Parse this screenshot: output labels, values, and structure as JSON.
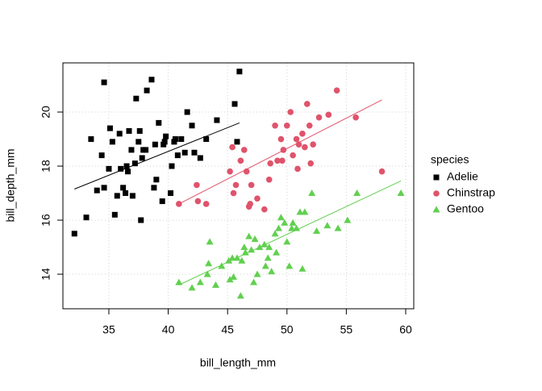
{
  "chart_data": {
    "type": "scatter",
    "xlabel": "bill_length_mm",
    "ylabel": "bill_depth_mm",
    "xlim": [
      31.13,
      60.68
    ],
    "ylim": [
      12.72,
      21.82
    ],
    "xticks": [
      35,
      40,
      45,
      50,
      55,
      60
    ],
    "yticks": [
      14,
      16,
      18,
      20
    ],
    "grid": true,
    "legend_title": "species",
    "legend": "right",
    "series": [
      {
        "name": "Adelie",
        "color": "#000000",
        "marker": "square",
        "x": [
          32.1,
          33.1,
          33.5,
          34.0,
          34.4,
          34.6,
          34.6,
          35.0,
          35.1,
          35.3,
          35.5,
          35.7,
          35.9,
          36.0,
          36.2,
          36.4,
          36.6,
          36.7,
          36.9,
          37.0,
          37.2,
          37.3,
          37.5,
          37.6,
          37.7,
          37.8,
          38.1,
          38.2,
          38.6,
          38.8,
          39.0,
          39.2,
          39.5,
          39.6,
          39.7,
          40.2,
          40.3,
          40.6,
          40.8,
          41.1,
          41.4,
          41.6,
          42.0,
          42.2,
          42.7,
          43.2,
          44.1,
          45.6,
          45.8,
          46.0,
          36.5,
          38.9,
          40.5,
          39.8,
          37.9
        ],
        "values": [
          15.5,
          16.1,
          19.0,
          17.1,
          18.4,
          21.1,
          17.2,
          17.9,
          19.4,
          18.9,
          16.2,
          16.9,
          19.2,
          17.9,
          17.2,
          17.0,
          17.8,
          19.3,
          18.6,
          16.9,
          18.1,
          20.5,
          18.9,
          19.3,
          16.0,
          18.3,
          18.6,
          20.8,
          21.2,
          17.2,
          17.5,
          19.6,
          16.7,
          18.8,
          18.9,
          17.0,
          18.0,
          19.0,
          18.4,
          19.0,
          18.5,
          20.0,
          19.5,
          18.5,
          18.3,
          19.0,
          19.7,
          20.3,
          18.9,
          21.5,
          18.0,
          18.8,
          18.9,
          19.1,
          18.6
        ],
        "fit": {
          "x": [
            32.1,
            46.0
          ],
          "y": [
            17.15,
            19.6
          ]
        }
      },
      {
        "name": "Chinstrap",
        "color": "#DF536B",
        "marker": "circle",
        "x": [
          40.9,
          42.4,
          42.5,
          43.2,
          45.2,
          45.4,
          45.5,
          45.7,
          46.1,
          46.4,
          46.6,
          46.9,
          47.0,
          47.5,
          48.1,
          48.5,
          49.0,
          49.2,
          49.5,
          49.7,
          50.0,
          50.3,
          50.5,
          50.8,
          51.0,
          51.3,
          51.5,
          51.7,
          51.9,
          52.0,
          52.2,
          52.7,
          53.5,
          54.2,
          55.8,
          58.0,
          49.6,
          50.9,
          46.8,
          48.6
        ],
        "values": [
          16.6,
          17.3,
          16.7,
          16.6,
          17.8,
          18.7,
          17.0,
          17.3,
          18.2,
          18.6,
          17.8,
          16.6,
          17.3,
          16.8,
          16.4,
          17.5,
          19.5,
          18.2,
          19.0,
          18.6,
          19.5,
          20.0,
          18.4,
          19.0,
          18.8,
          19.2,
          18.7,
          20.3,
          19.5,
          18.1,
          18.8,
          19.8,
          19.9,
          20.8,
          19.8,
          17.8,
          18.2,
          17.9,
          16.5,
          18.1
        ],
        "fit": {
          "x": [
            40.9,
            58.0
          ],
          "y": [
            16.6,
            20.45
          ]
        }
      },
      {
        "name": "Gentoo",
        "color": "#61D04F",
        "marker": "triangle",
        "x": [
          40.9,
          42.0,
          42.7,
          43.3,
          43.5,
          44.0,
          44.5,
          45.1,
          45.2,
          45.5,
          45.8,
          46.1,
          46.2,
          46.5,
          46.8,
          47.0,
          47.3,
          47.5,
          47.7,
          48.1,
          48.4,
          48.5,
          48.7,
          49.0,
          49.1,
          49.5,
          49.8,
          50.0,
          50.4,
          50.5,
          50.8,
          51.1,
          51.5,
          52.1,
          52.5,
          53.4,
          54.3,
          55.1,
          55.9,
          59.6,
          45.4,
          46.4,
          47.2,
          49.3,
          50.2,
          43.4,
          48.2,
          51.3
        ],
        "values": [
          13.7,
          13.5,
          13.7,
          14.0,
          15.2,
          13.6,
          14.3,
          14.5,
          13.8,
          13.9,
          14.6,
          13.2,
          14.5,
          14.8,
          15.4,
          14.9,
          15.3,
          14.0,
          15.0,
          15.1,
          14.6,
          15.0,
          14.1,
          15.5,
          14.8,
          16.1,
          15.9,
          15.2,
          15.7,
          15.9,
          15.7,
          16.3,
          16.3,
          17.0,
          15.6,
          15.8,
          15.7,
          16.0,
          17.0,
          17.0,
          14.6,
          15.0,
          13.7,
          15.7,
          14.3,
          14.4,
          14.3,
          14.2
        ],
        "fit": {
          "x": [
            40.9,
            59.6
          ],
          "y": [
            13.6,
            17.45
          ]
        }
      }
    ]
  }
}
